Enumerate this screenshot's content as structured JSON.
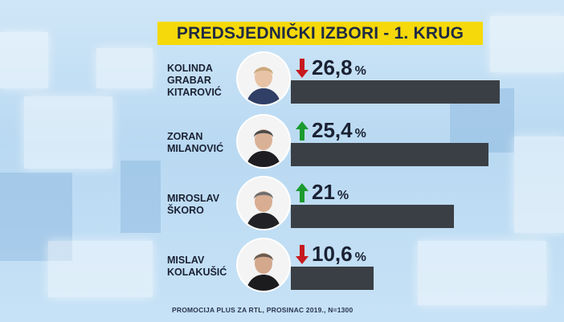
{
  "title": "PREDSJEDNIČKI IZBORI - 1. KRUG",
  "footer": "PROMOCIJA PLUS ZA RTL, PROSINAC 2019., N=1300",
  "colors": {
    "title_bg": "#f5d90a",
    "bar": "#3a3f45",
    "up": "#1c9a2e",
    "down": "#c7191f"
  },
  "chart_data": {
    "type": "bar",
    "orientation": "horizontal",
    "title": "PREDSJEDNIČKI IZBORI - 1. KRUG",
    "unit": "%",
    "categories": [
      "KOLINDA GRABAR KITAROVIĆ",
      "ZORAN MILANOVIĆ",
      "MIROSLAV ŠKORO",
      "MISLAV KOLAKUŠIĆ"
    ],
    "values": [
      26.8,
      25.4,
      21,
      10.6
    ],
    "xlim": [
      0,
      29
    ],
    "grid": false,
    "candidates": [
      {
        "name_lines": [
          "KOLINDA",
          "GRABAR",
          "KITAROVIĆ"
        ],
        "value": 26.8,
        "label": "26,8",
        "trend": "down",
        "trend_icon": "arrow-down-icon"
      },
      {
        "name_lines": [
          "ZORAN",
          "MILANOVIĆ"
        ],
        "value": 25.4,
        "label": "25,4",
        "trend": "up",
        "trend_icon": "arrow-up-icon"
      },
      {
        "name_lines": [
          "MIROSLAV",
          "ŠKORO"
        ],
        "value": 21,
        "label": "21",
        "trend": "up",
        "trend_icon": "arrow-up-icon"
      },
      {
        "name_lines": [
          "MISLAV",
          "KOLAKUŠIĆ"
        ],
        "value": 10.6,
        "label": "10,6",
        "trend": "down",
        "trend_icon": "arrow-down-icon"
      }
    ]
  }
}
